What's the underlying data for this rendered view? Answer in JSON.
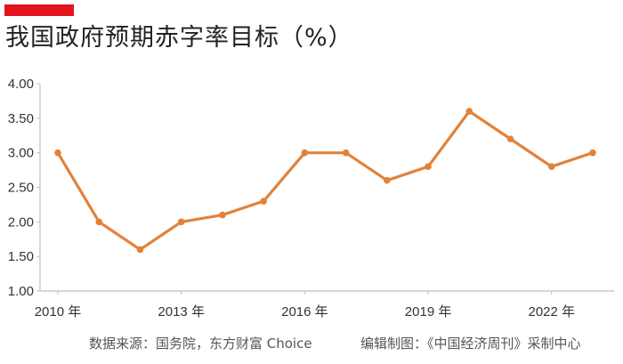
{
  "header": {
    "title": "我国政府预期赤字率目标（%）",
    "accent_color": "#e4141c"
  },
  "footer": {
    "source": "数据来源：国务院，东方财富 Choice",
    "credit": "编辑制图：《中国经济周刊》采制中心"
  },
  "chart_data": {
    "type": "line",
    "title": "我国政府预期赤字率目标（%）",
    "xlabel": "",
    "ylabel": "",
    "x": [
      2010,
      2011,
      2012,
      2013,
      2014,
      2015,
      2016,
      2017,
      2018,
      2019,
      2020,
      2021,
      2022,
      2023
    ],
    "x_tick_labels": [
      {
        "year": 2010,
        "label": "2010 年"
      },
      {
        "year": 2013,
        "label": "2013 年"
      },
      {
        "year": 2016,
        "label": "2016 年"
      },
      {
        "year": 2019,
        "label": "2019 年"
      },
      {
        "year": 2022,
        "label": "2022 年"
      }
    ],
    "series": [
      {
        "values": [
          3.0,
          2.0,
          1.6,
          2.0,
          2.1,
          2.3,
          3.0,
          3.0,
          2.6,
          2.8,
          3.6,
          3.2,
          2.8,
          3.0
        ],
        "color": "#e2823a"
      }
    ],
    "ylim": [
      1.0,
      4.0
    ],
    "y_ticks": [
      "1.00",
      "1.50",
      "2.00",
      "2.50",
      "3.00",
      "3.50",
      "4.00"
    ],
    "grid": false,
    "axis_color": "#bfbfbf",
    "legend": "none"
  }
}
